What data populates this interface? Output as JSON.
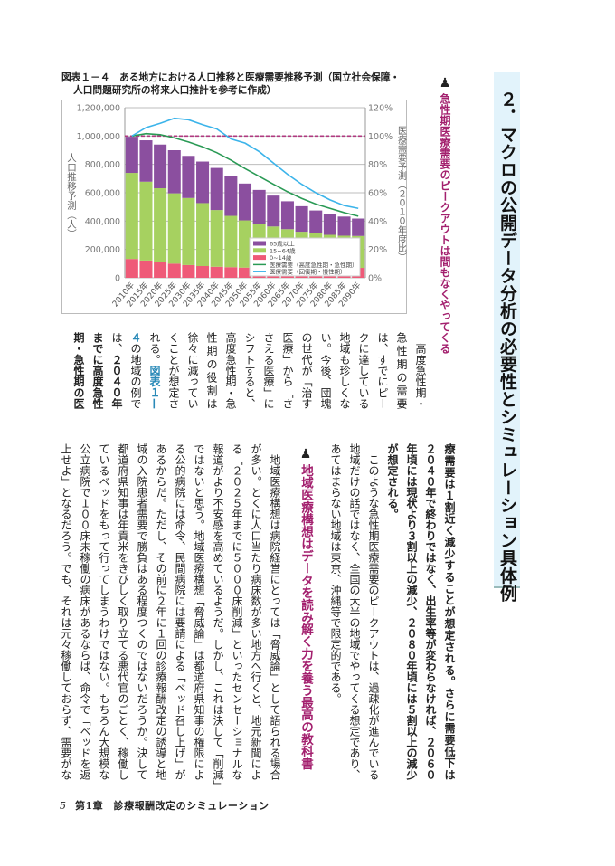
{
  "header": {
    "title": "２．マクロの公開データ分析の必要性とシミュレーション具体例",
    "section_heading": "急性期医療需要のピークアウトは間もなくやってくる",
    "subheading": "地域医療構想はデータを読み解く力を養う最高の教科書",
    "heading_icon": "chess-pawn-icon"
  },
  "figure": {
    "title_line1": "図表１－４　ある地方における人口推移と医療需要推移予測（国立社会保障・",
    "title_line2": "人口問題研究所の将来人口推計を参考に作成）"
  },
  "chart_data": {
    "type": "bar",
    "stacked": true,
    "categories": [
      "2010年",
      "2015年",
      "2020年",
      "2025年",
      "2030年",
      "2035年",
      "2040年",
      "2045年",
      "2050年",
      "2055年",
      "2060年",
      "2065年",
      "2070年",
      "2075年",
      "2080年",
      "2085年",
      "2090年"
    ],
    "ylabel": "人口推移予測（人）",
    "y2label": "医療需要予測（２０１０年度比）",
    "ylim": [
      0,
      1200000
    ],
    "y2lim": [
      0,
      120
    ],
    "yticks": [
      "0",
      "200,000",
      "400,000",
      "600,000",
      "800,000",
      "1,000,000",
      "1,200,000"
    ],
    "y2ticks": [
      "0%",
      "20%",
      "40%",
      "60%",
      "80%",
      "100%",
      "120%"
    ],
    "reference_line_pct": 100,
    "legend_position": "bottom-right",
    "series": [
      {
        "name": "0~14歳",
        "kind": "bar",
        "color": "#ef5a78",
        "values": [
          133000,
          122000,
          110000,
          100000,
          90000,
          83000,
          78000,
          75000,
          72000,
          70000,
          68000,
          66000,
          65000,
          64000,
          64000,
          66000,
          70000
        ]
      },
      {
        "name": "15~64歳",
        "kind": "bar",
        "color": "#a6d160",
        "values": [
          607000,
          556000,
          522000,
          496000,
          473000,
          444000,
          400000,
          362000,
          333000,
          310000,
          294000,
          277000,
          260000,
          249000,
          239000,
          231000,
          225000
        ]
      },
      {
        "name": "65歳以上",
        "kind": "bar",
        "color": "#8b4f9f",
        "values": [
          255000,
          292000,
          308000,
          304000,
          297000,
          293000,
          297000,
          283000,
          260000,
          240000,
          218000,
          197000,
          180000,
          162000,
          147000,
          135000,
          123000
        ]
      },
      {
        "name": "医療需要（高度急性期・急性期）",
        "kind": "line",
        "axis": "right",
        "color": "#2a9a55",
        "values": [
          100,
          101.7,
          101,
          98.7,
          95.8,
          92.4,
          88.3,
          83,
          77,
          71.5,
          66,
          60.7,
          56,
          52,
          49,
          46,
          43.5
        ]
      },
      {
        "name": "医療需要（回復期・慢性期）",
        "kind": "line",
        "axis": "right",
        "color": "#3cb4ea",
        "values": [
          100,
          106,
          109,
          112.5,
          111.5,
          108,
          105,
          98,
          95,
          89,
          81,
          73,
          66,
          60,
          55,
          51,
          49
        ]
      }
    ],
    "legend_order": [
      2,
      1,
      0,
      3,
      4
    ]
  },
  "upper_block": [
    {
      "parts": [
        {
          "t": "　高度急性期・"
        }
      ]
    },
    {
      "parts": [
        {
          "t": "急性期の需要"
        }
      ]
    },
    {
      "parts": [
        {
          "t": "は、すでにピー"
        }
      ]
    },
    {
      "parts": [
        {
          "t": "クに達している"
        }
      ]
    },
    {
      "parts": [
        {
          "t": "地域も珍しくな"
        }
      ]
    },
    {
      "parts": [
        {
          "t": "い。今後、団塊"
        }
      ]
    },
    {
      "parts": [
        {
          "t": "の世代が「治す"
        }
      ]
    },
    {
      "parts": [
        {
          "t": "医療」から「さ"
        }
      ]
    },
    {
      "parts": [
        {
          "t": "さえる医療」に"
        }
      ]
    },
    {
      "parts": [
        {
          "t": "シフトすると、"
        }
      ]
    },
    {
      "parts": [
        {
          "t": "高度急性期・急"
        }
      ]
    },
    {
      "parts": [
        {
          "t": "性期の役割は"
        }
      ]
    },
    {
      "parts": [
        {
          "t": "徐々に減ってい"
        }
      ]
    },
    {
      "parts": [
        {
          "t": "くことが想定さ"
        }
      ]
    },
    {
      "parts": [
        {
          "t": "れる。"
        },
        {
          "t": "図表１—",
          "s": "lk"
        }
      ]
    },
    {
      "parts": [
        {
          "t": "４",
          "s": "lk"
        },
        {
          "t": "の地域の例で"
        }
      ]
    },
    {
      "parts": [
        {
          "t": "は、"
        },
        {
          "t": "２０４０年",
          "s": "b"
        }
      ]
    },
    {
      "parts": [
        {
          "t": "までに高度急性",
          "s": "b"
        }
      ]
    },
    {
      "parts": [
        {
          "t": "期・急性期の医",
          "s": "b"
        }
      ]
    }
  ],
  "lower_right_block": [
    {
      "parts": [
        {
          "t": "療需要は１割近く減少することが想定される。さらに需要低下は",
          "s": "b"
        }
      ]
    },
    {
      "parts": [
        {
          "t": "２０４０年で終わりではなく、出生率等が変わらなければ、２０６０",
          "s": "b"
        }
      ]
    },
    {
      "parts": [
        {
          "t": "年頃には現状より３割以上の減少、２０８０年頃には５割以上の減少",
          "s": "b"
        }
      ]
    },
    {
      "parts": [
        {
          "t": "が想定される。",
          "s": "b"
        }
      ],
      "last": true
    },
    {
      "parts": [
        {
          "t": "　このような急性期医療需要のピークアウトは、過疎化が進んでいる"
        }
      ]
    },
    {
      "parts": [
        {
          "t": "地域だけの話ではなく、全国の大半の地域でやってくる想定であり、"
        }
      ]
    },
    {
      "parts": [
        {
          "t": "あてはまらない地域は東京、沖縄等で限定的である。"
        }
      ],
      "last": true
    }
  ],
  "lower_left_block": [
    {
      "parts": [
        {
          "t": "　地域医療構想は病院経営にとっては「脅威論」として語られる場合"
        }
      ]
    },
    {
      "parts": [
        {
          "t": "が多い。とくに人口当たり病床数が多い地方へ行くと、地元新聞によ"
        }
      ]
    },
    {
      "parts": [
        {
          "t": "る「２０２５年までに５０００床削減」といったセンセーショナルな"
        }
      ]
    },
    {
      "parts": [
        {
          "t": "報道がより不安感を高めているようだ。しかし、これは決して「削減」"
        }
      ]
    },
    {
      "parts": [
        {
          "t": "ではないと思う。地域医療構想「脅威論」は都道府県知事の権限によ"
        }
      ]
    },
    {
      "parts": [
        {
          "t": "る公的病院には命令、民間病院には要請による「ベッド召し上げ」が"
        }
      ]
    },
    {
      "parts": [
        {
          "t": "あるからだ。ただし、その前に２年に１回の診療報酬改定の誘導と地"
        }
      ]
    },
    {
      "parts": [
        {
          "t": "域の入院患者需要で勝負はある程度つくのではないだろうか。決して"
        }
      ]
    },
    {
      "parts": [
        {
          "t": "都道府県知事は年貢米をきびしく取り立てる悪代官のごとく、稼働し"
        }
      ]
    },
    {
      "parts": [
        {
          "t": "ているベッドをもって行ってしまうわけではない。もちろん大規模な"
        }
      ]
    },
    {
      "parts": [
        {
          "t": "公立病院で１００床未稼働の病床があるならば、命令で「ベッドを返"
        }
      ]
    },
    {
      "parts": [
        {
          "t": "上せよ」となるだろう。でも、それは元々稼働しておらず、需要がな"
        }
      ]
    }
  ],
  "footer": {
    "page_number": "5",
    "chapter": "第1章　診療報酬改定のシミュレーション"
  }
}
